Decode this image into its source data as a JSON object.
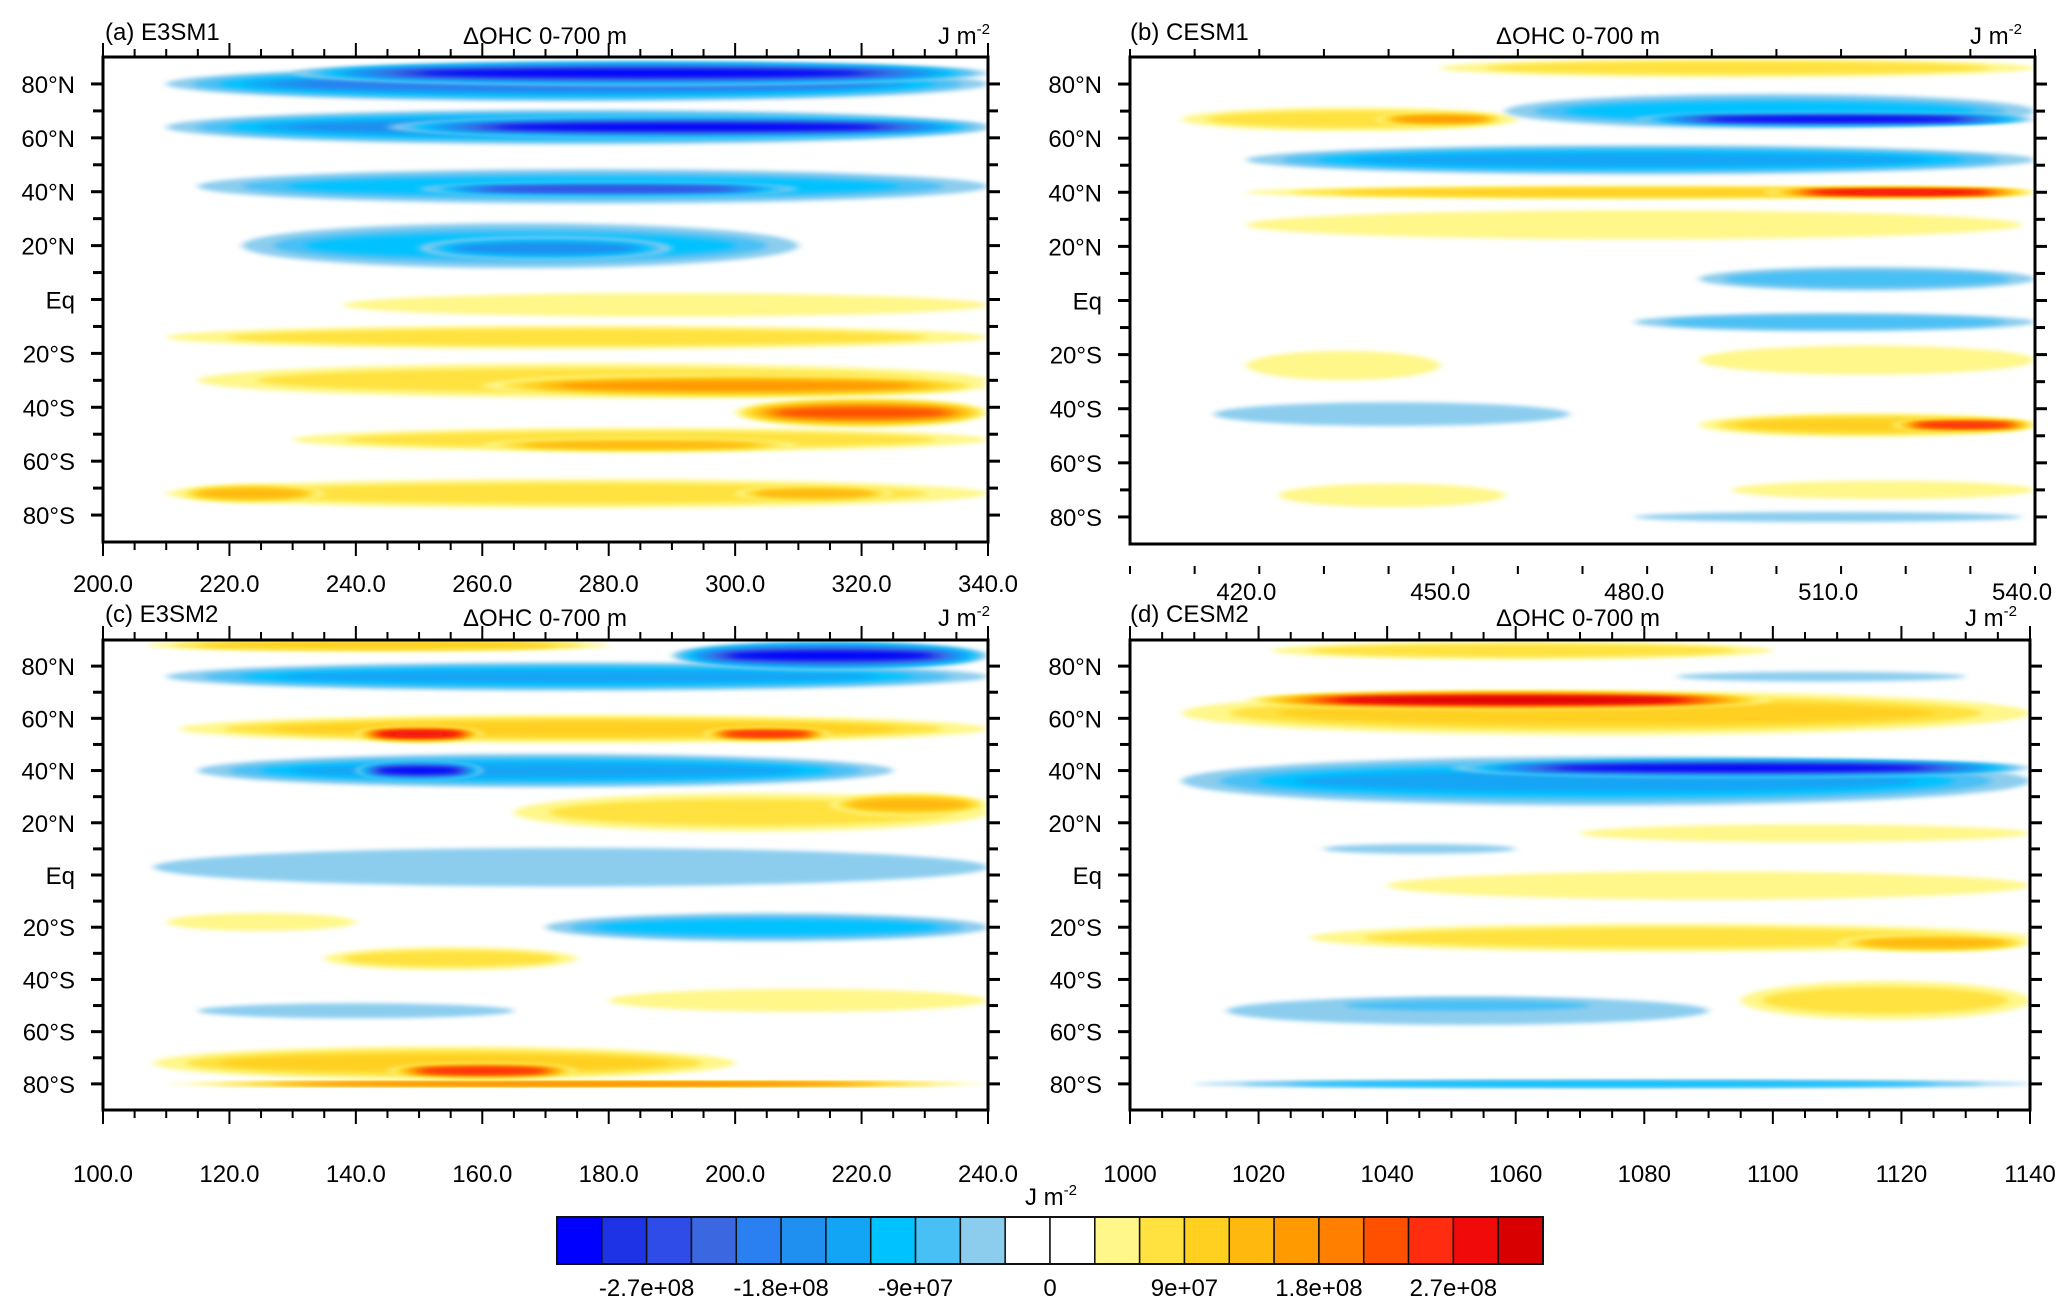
{
  "figure": {
    "colorbar": {
      "unit": "J m",
      "unit_exponent": "-2",
      "levels": [
        -315000000.0,
        -270000000.0,
        -225000000.0,
        -180000000.0,
        -135000000.0,
        -90000000.0,
        -67500000.0,
        -45000000.0,
        -22500000.0,
        0,
        22500000.0,
        45000000.0,
        67500000.0,
        90000000.0,
        135000000.0,
        180000000.0,
        225000000.0,
        270000000.0,
        315000000.0
      ],
      "tick_labels": [
        "-2.7e+08",
        "-1.8e+08",
        "-9e+07",
        "0",
        "9e+07",
        "1.8e+08",
        "2.7e+08"
      ],
      "colors": [
        "#0000ff",
        "#1e32e6",
        "#2f4ce8",
        "#3b68e0",
        "#2a80f0",
        "#1f8ff0",
        "#12a5f5",
        "#00c2ff",
        "#48c0f5",
        "#8ccdee",
        "#ffffff",
        "#ffffff",
        "#fff78a",
        "#ffe23f",
        "#ffd020",
        "#ffb80e",
        "#ff9a00",
        "#ff7f00",
        "#ff5000",
        "#ff2c10",
        "#f00a0a",
        "#d80000"
      ]
    }
  },
  "chart_data": [
    {
      "type": "heatmap",
      "panel_label": "(a) E3SM1",
      "title": "ΔOHC 0-700 m",
      "units": "J m",
      "units_exp": "-2",
      "xlim": [
        200,
        340
      ],
      "x_ticks": [
        200,
        220,
        240,
        260,
        280,
        300,
        320,
        340
      ],
      "x_tick_labels": [
        "200.0",
        "220.0",
        "240.0",
        "260.0",
        "280.0",
        "300.0",
        "320.0",
        "340.0"
      ],
      "ylim": [
        -90,
        90
      ],
      "y_ticks": [
        80,
        60,
        40,
        20,
        0,
        -20,
        -40,
        -60,
        -80
      ],
      "y_tick_labels": [
        "80°N",
        "60°N",
        "40°N",
        "20°N",
        "Eq",
        "20°S",
        "40°S",
        "60°S",
        "80°S"
      ],
      "features": [
        {
          "x0": 210,
          "x1": 340,
          "lat": 80,
          "h": 12,
          "level": -6
        },
        {
          "x0": 230,
          "x1": 340,
          "lat": 84,
          "h": 8,
          "level": -10
        },
        {
          "x0": 210,
          "x1": 340,
          "lat": 64,
          "h": 12,
          "level": -5
        },
        {
          "x0": 245,
          "x1": 340,
          "lat": 64,
          "h": 7,
          "level": -10
        },
        {
          "x0": 215,
          "x1": 340,
          "lat": 42,
          "h": 12,
          "level": -3
        },
        {
          "x0": 250,
          "x1": 310,
          "lat": 41,
          "h": 4,
          "level": -8
        },
        {
          "x0": 222,
          "x1": 310,
          "lat": 20,
          "h": 16,
          "level": -3
        },
        {
          "x0": 250,
          "x1": 290,
          "lat": 19,
          "h": 8,
          "level": -5
        },
        {
          "x0": 238,
          "x1": 340,
          "lat": -2,
          "h": 8,
          "level": 1
        },
        {
          "x0": 210,
          "x1": 340,
          "lat": -14,
          "h": 8,
          "level": 2
        },
        {
          "x0": 215,
          "x1": 340,
          "lat": -30,
          "h": 12,
          "level": 2
        },
        {
          "x0": 260,
          "x1": 340,
          "lat": -32,
          "h": 8,
          "level": 5
        },
        {
          "x0": 300,
          "x1": 340,
          "lat": -42,
          "h": 10,
          "level": 7
        },
        {
          "x0": 230,
          "x1": 340,
          "lat": -52,
          "h": 8,
          "level": 2
        },
        {
          "x0": 260,
          "x1": 310,
          "lat": -54,
          "h": 4,
          "level": 4
        },
        {
          "x0": 210,
          "x1": 340,
          "lat": -72,
          "h": 10,
          "level": 2
        },
        {
          "x0": 212,
          "x1": 235,
          "lat": -72,
          "h": 6,
          "level": 4
        },
        {
          "x0": 300,
          "x1": 325,
          "lat": -72,
          "h": 5,
          "level": 4
        }
      ]
    },
    {
      "type": "heatmap",
      "panel_label": "(b) CESM1",
      "title": "ΔOHC 0-700 m",
      "units": "J m",
      "units_exp": "-2",
      "xlim": [
        402,
        542
      ],
      "x_ticks": [
        420,
        450,
        480,
        510,
        540
      ],
      "x_tick_labels": [
        "420.0",
        "450.0",
        "480.0",
        "510.0",
        "540.0"
      ],
      "ylim": [
        -90,
        90
      ],
      "y_ticks": [
        80,
        60,
        40,
        20,
        0,
        -20,
        -40,
        -60,
        -80
      ],
      "y_tick_labels": [
        "80°N",
        "60°N",
        "40°N",
        "20°N",
        "Eq",
        "20°S",
        "40°S",
        "60°S",
        "80°S"
      ],
      "features": [
        {
          "x0": 450,
          "x1": 542,
          "lat": 86,
          "h": 6,
          "level": 2
        },
        {
          "x0": 410,
          "x1": 462,
          "lat": 67,
          "h": 8,
          "level": 2
        },
        {
          "x0": 440,
          "x1": 460,
          "lat": 67,
          "h": 4,
          "level": 5
        },
        {
          "x0": 460,
          "x1": 542,
          "lat": 70,
          "h": 12,
          "level": -3
        },
        {
          "x0": 480,
          "x1": 542,
          "lat": 67,
          "h": 4,
          "level": -10
        },
        {
          "x0": 420,
          "x1": 542,
          "lat": 52,
          "h": 10,
          "level": -4
        },
        {
          "x0": 420,
          "x1": 542,
          "lat": 40,
          "h": 4,
          "level": 3
        },
        {
          "x0": 500,
          "x1": 542,
          "lat": 40,
          "h": 3,
          "level": 9
        },
        {
          "x0": 420,
          "x1": 540,
          "lat": 28,
          "h": 10,
          "level": 1
        },
        {
          "x0": 490,
          "x1": 542,
          "lat": 8,
          "h": 8,
          "level": -2
        },
        {
          "x0": 480,
          "x1": 542,
          "lat": -8,
          "h": 6,
          "level": -2
        },
        {
          "x0": 420,
          "x1": 450,
          "lat": -24,
          "h": 10,
          "level": 1
        },
        {
          "x0": 490,
          "x1": 542,
          "lat": -22,
          "h": 10,
          "level": 1
        },
        {
          "x0": 415,
          "x1": 470,
          "lat": -42,
          "h": 8,
          "level": -1
        },
        {
          "x0": 490,
          "x1": 542,
          "lat": -46,
          "h": 8,
          "level": 3
        },
        {
          "x0": 520,
          "x1": 542,
          "lat": -46,
          "h": 4,
          "level": 8
        },
        {
          "x0": 425,
          "x1": 460,
          "lat": -72,
          "h": 8,
          "level": 1
        },
        {
          "x0": 495,
          "x1": 542,
          "lat": -70,
          "h": 6,
          "level": 1
        },
        {
          "x0": 480,
          "x1": 540,
          "lat": -80,
          "h": 3,
          "level": -1
        }
      ]
    },
    {
      "type": "heatmap",
      "panel_label": "(c) E3SM2",
      "title": "ΔOHC 0-700 m",
      "units": "J m",
      "units_exp": "-2",
      "xlim": [
        100,
        240
      ],
      "x_ticks": [
        100,
        120,
        140,
        160,
        180,
        200,
        220,
        240
      ],
      "x_tick_labels": [
        "100.0",
        "120.0",
        "140.0",
        "160.0",
        "180.0",
        "200.0",
        "220.0",
        "240.0"
      ],
      "ylim": [
        -90,
        90
      ],
      "y_ticks": [
        80,
        60,
        40,
        20,
        0,
        -20,
        -40,
        -60,
        -80
      ],
      "y_tick_labels": [
        "80°N",
        "60°N",
        "40°N",
        "20°N",
        "Eq",
        "20°S",
        "40°S",
        "60°S",
        "80°S"
      ],
      "features": [
        {
          "x0": 107,
          "x1": 180,
          "lat": 88,
          "h": 4,
          "level": 3
        },
        {
          "x0": 190,
          "x1": 240,
          "lat": 84,
          "h": 10,
          "level": -10
        },
        {
          "x0": 110,
          "x1": 240,
          "lat": 76,
          "h": 10,
          "level": -4
        },
        {
          "x0": 112,
          "x1": 240,
          "lat": 56,
          "h": 10,
          "level": 3
        },
        {
          "x0": 140,
          "x1": 160,
          "lat": 54,
          "h": 5,
          "level": 9
        },
        {
          "x0": 195,
          "x1": 215,
          "lat": 54,
          "h": 4,
          "level": 8
        },
        {
          "x0": 115,
          "x1": 225,
          "lat": 40,
          "h": 12,
          "level": -4
        },
        {
          "x0": 140,
          "x1": 160,
          "lat": 40,
          "h": 6,
          "level": -10
        },
        {
          "x0": 165,
          "x1": 240,
          "lat": 24,
          "h": 14,
          "level": 2
        },
        {
          "x0": 215,
          "x1": 240,
          "lat": 27,
          "h": 8,
          "level": 4
        },
        {
          "x0": 108,
          "x1": 240,
          "lat": 3,
          "h": 14,
          "level": -1
        },
        {
          "x0": 170,
          "x1": 240,
          "lat": -20,
          "h": 10,
          "level": -3
        },
        {
          "x0": 110,
          "x1": 140,
          "lat": -18,
          "h": 6,
          "level": 1
        },
        {
          "x0": 135,
          "x1": 175,
          "lat": -32,
          "h": 8,
          "level": 2
        },
        {
          "x0": 180,
          "x1": 240,
          "lat": -48,
          "h": 8,
          "level": 1
        },
        {
          "x0": 115,
          "x1": 165,
          "lat": -52,
          "h": 5,
          "level": -1
        },
        {
          "x0": 108,
          "x1": 200,
          "lat": -72,
          "h": 12,
          "level": 3
        },
        {
          "x0": 145,
          "x1": 175,
          "lat": -75,
          "h": 5,
          "level": 8
        },
        {
          "x0": 110,
          "x1": 240,
          "lat": -80,
          "h": 1,
          "level": 6
        }
      ]
    },
    {
      "type": "heatmap",
      "panel_label": "(d) CESM2",
      "title": "ΔOHC 0-700 m",
      "units": "J m",
      "units_exp": "-2",
      "xlim": [
        1000,
        1140
      ],
      "x_ticks": [
        1000,
        1020,
        1040,
        1060,
        1080,
        1100,
        1120,
        1140
      ],
      "x_tick_labels": [
        "1000",
        "1020",
        "1040",
        "1060",
        "1080",
        "1100",
        "1120",
        "1140"
      ],
      "ylim": [
        -90,
        90
      ],
      "y_ticks": [
        80,
        60,
        40,
        20,
        0,
        -20,
        -40,
        -60,
        -80
      ],
      "y_tick_labels": [
        "80°N",
        "60°N",
        "40°N",
        "20°N",
        "Eq",
        "20°S",
        "40°S",
        "60°S",
        "80°S"
      ],
      "features": [
        {
          "x0": 1022,
          "x1": 1100,
          "lat": 86,
          "h": 6,
          "level": 2
        },
        {
          "x0": 1085,
          "x1": 1130,
          "lat": 76,
          "h": 3,
          "level": -1
        },
        {
          "x0": 1008,
          "x1": 1140,
          "lat": 62,
          "h": 16,
          "level": 3
        },
        {
          "x0": 1018,
          "x1": 1100,
          "lat": 67,
          "h": 6,
          "level": 10
        },
        {
          "x0": 1008,
          "x1": 1140,
          "lat": 36,
          "h": 18,
          "level": -4
        },
        {
          "x0": 1050,
          "x1": 1140,
          "lat": 41,
          "h": 6,
          "level": -10
        },
        {
          "x0": 1070,
          "x1": 1140,
          "lat": 16,
          "h": 6,
          "level": 1
        },
        {
          "x0": 1030,
          "x1": 1060,
          "lat": 10,
          "h": 3,
          "level": -1
        },
        {
          "x0": 1040,
          "x1": 1140,
          "lat": -4,
          "h": 10,
          "level": 1
        },
        {
          "x0": 1028,
          "x1": 1140,
          "lat": -24,
          "h": 10,
          "level": 2
        },
        {
          "x0": 1110,
          "x1": 1140,
          "lat": -26,
          "h": 6,
          "level": 4
        },
        {
          "x0": 1095,
          "x1": 1140,
          "lat": -48,
          "h": 14,
          "level": 2
        },
        {
          "x0": 1015,
          "x1": 1090,
          "lat": -52,
          "h": 10,
          "level": -1
        },
        {
          "x0": 1030,
          "x1": 1075,
          "lat": -50,
          "h": 5,
          "level": -2
        },
        {
          "x0": 1010,
          "x1": 1140,
          "lat": -80,
          "h": 2,
          "level": -3
        }
      ]
    }
  ]
}
